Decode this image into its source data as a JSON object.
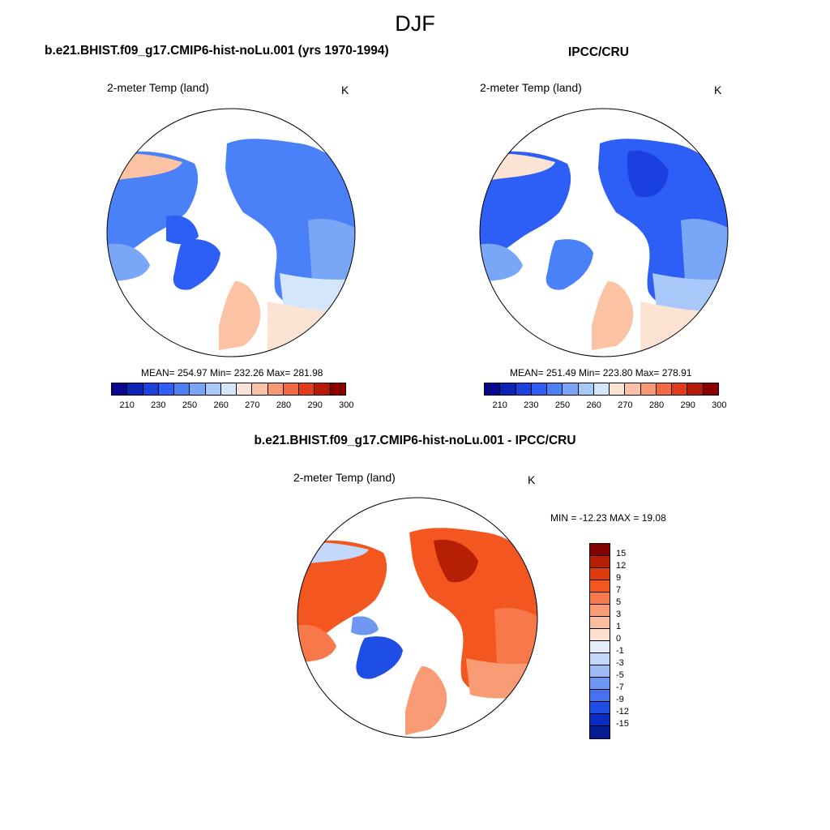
{
  "figure": {
    "season": "DJF",
    "left_title": "b.e21.BHIST.f09_g17.CMIP6-hist-noLu.001 (yrs 1970-1994)",
    "right_title": "IPCC/CRU",
    "diff_title": "b.e21.BHIST.f09_g17.CMIP6-hist-noLu.001 - IPCC/CRU"
  },
  "panels": {
    "model": {
      "variable": "2-meter Temp (land)",
      "units": "K",
      "stats": "MEAN= 254.97  Min= 232.26  Max= 281.98"
    },
    "obs": {
      "variable": "2-meter Temp (land)",
      "units": "K",
      "stats": "MEAN= 251.49  Min= 223.80  Max= 278.91"
    },
    "diff": {
      "variable": "2-meter Temp (land)",
      "units": "K",
      "stats": "MIN = -12.23 MAX =  19.08"
    }
  },
  "colorbars": {
    "abs_labels": [
      "210",
      "230",
      "250",
      "260",
      "270",
      "280",
      "290",
      "300"
    ],
    "abs_colors": [
      "#08088c",
      "#0d23b8",
      "#1a40e0",
      "#2d5ef5",
      "#4a80f8",
      "#7aa6f8",
      "#a9c8fa",
      "#d4e6fb",
      "#fde3d4",
      "#fcc2a4",
      "#f99a74",
      "#f26a45",
      "#e33a1c",
      "#b81a08",
      "#8a0000"
    ],
    "diff_labels": [
      "15",
      "12",
      "9",
      "7",
      "5",
      "3",
      "1",
      "0",
      "-1",
      "-3",
      "-5",
      "-7",
      "-9",
      "-12",
      "-15"
    ],
    "diff_colors": [
      "#820000",
      "#b51f04",
      "#df3a10",
      "#f4561f",
      "#f7784a",
      "#f99b74",
      "#fbbc9e",
      "#fde0d0",
      "#e6eefb",
      "#c4d8fb",
      "#9dbcf7",
      "#6f98f2",
      "#4572ee",
      "#1f4ee6",
      "#0a2ec4",
      "#071c95"
    ]
  }
}
